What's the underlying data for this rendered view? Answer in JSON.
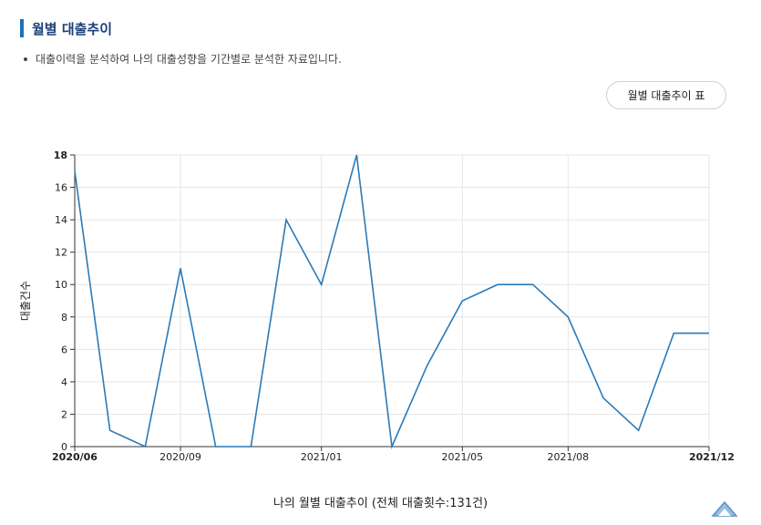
{
  "section": {
    "title": "월별 대출추이",
    "description": "대출이력을 분석하여 나의 대출성향을 기간별로 분석한 자료입니다."
  },
  "table_button": {
    "label": "월별 대출추이 표"
  },
  "caption": "나의 월별 대출추이 (전체 대출횟수:131건)",
  "colors": {
    "line": "#2a7ab8",
    "accent": "#1f6fb9",
    "title": "#1b3f78",
    "grid": "#e6e6e6"
  },
  "icons": {
    "scroll_top": "chevron-up-icon"
  },
  "chart_data": {
    "type": "line",
    "ylabel": "대출건수",
    "xlabel": "",
    "ylim": [
      0,
      18
    ],
    "yticks": [
      0,
      2,
      4,
      6,
      8,
      10,
      12,
      14,
      16,
      18
    ],
    "x": [
      "2020/06",
      "2020/07",
      "2020/08",
      "2020/09",
      "2020/10",
      "2020/11",
      "2020/12",
      "2021/01",
      "2021/02",
      "2021/03",
      "2021/04",
      "2021/05",
      "2021/06",
      "2021/07",
      "2021/08",
      "2021/09",
      "2021/10",
      "2021/11",
      "2021/12"
    ],
    "values": [
      17,
      1,
      0,
      11,
      0,
      0,
      14,
      10,
      18,
      0,
      5,
      9,
      10,
      10,
      8,
      3,
      1,
      7,
      7
    ],
    "tick_labels": [
      "2020/06",
      "2020/09",
      "2021/01",
      "2021/05",
      "2021/08",
      "2021/12"
    ],
    "grid": true
  }
}
